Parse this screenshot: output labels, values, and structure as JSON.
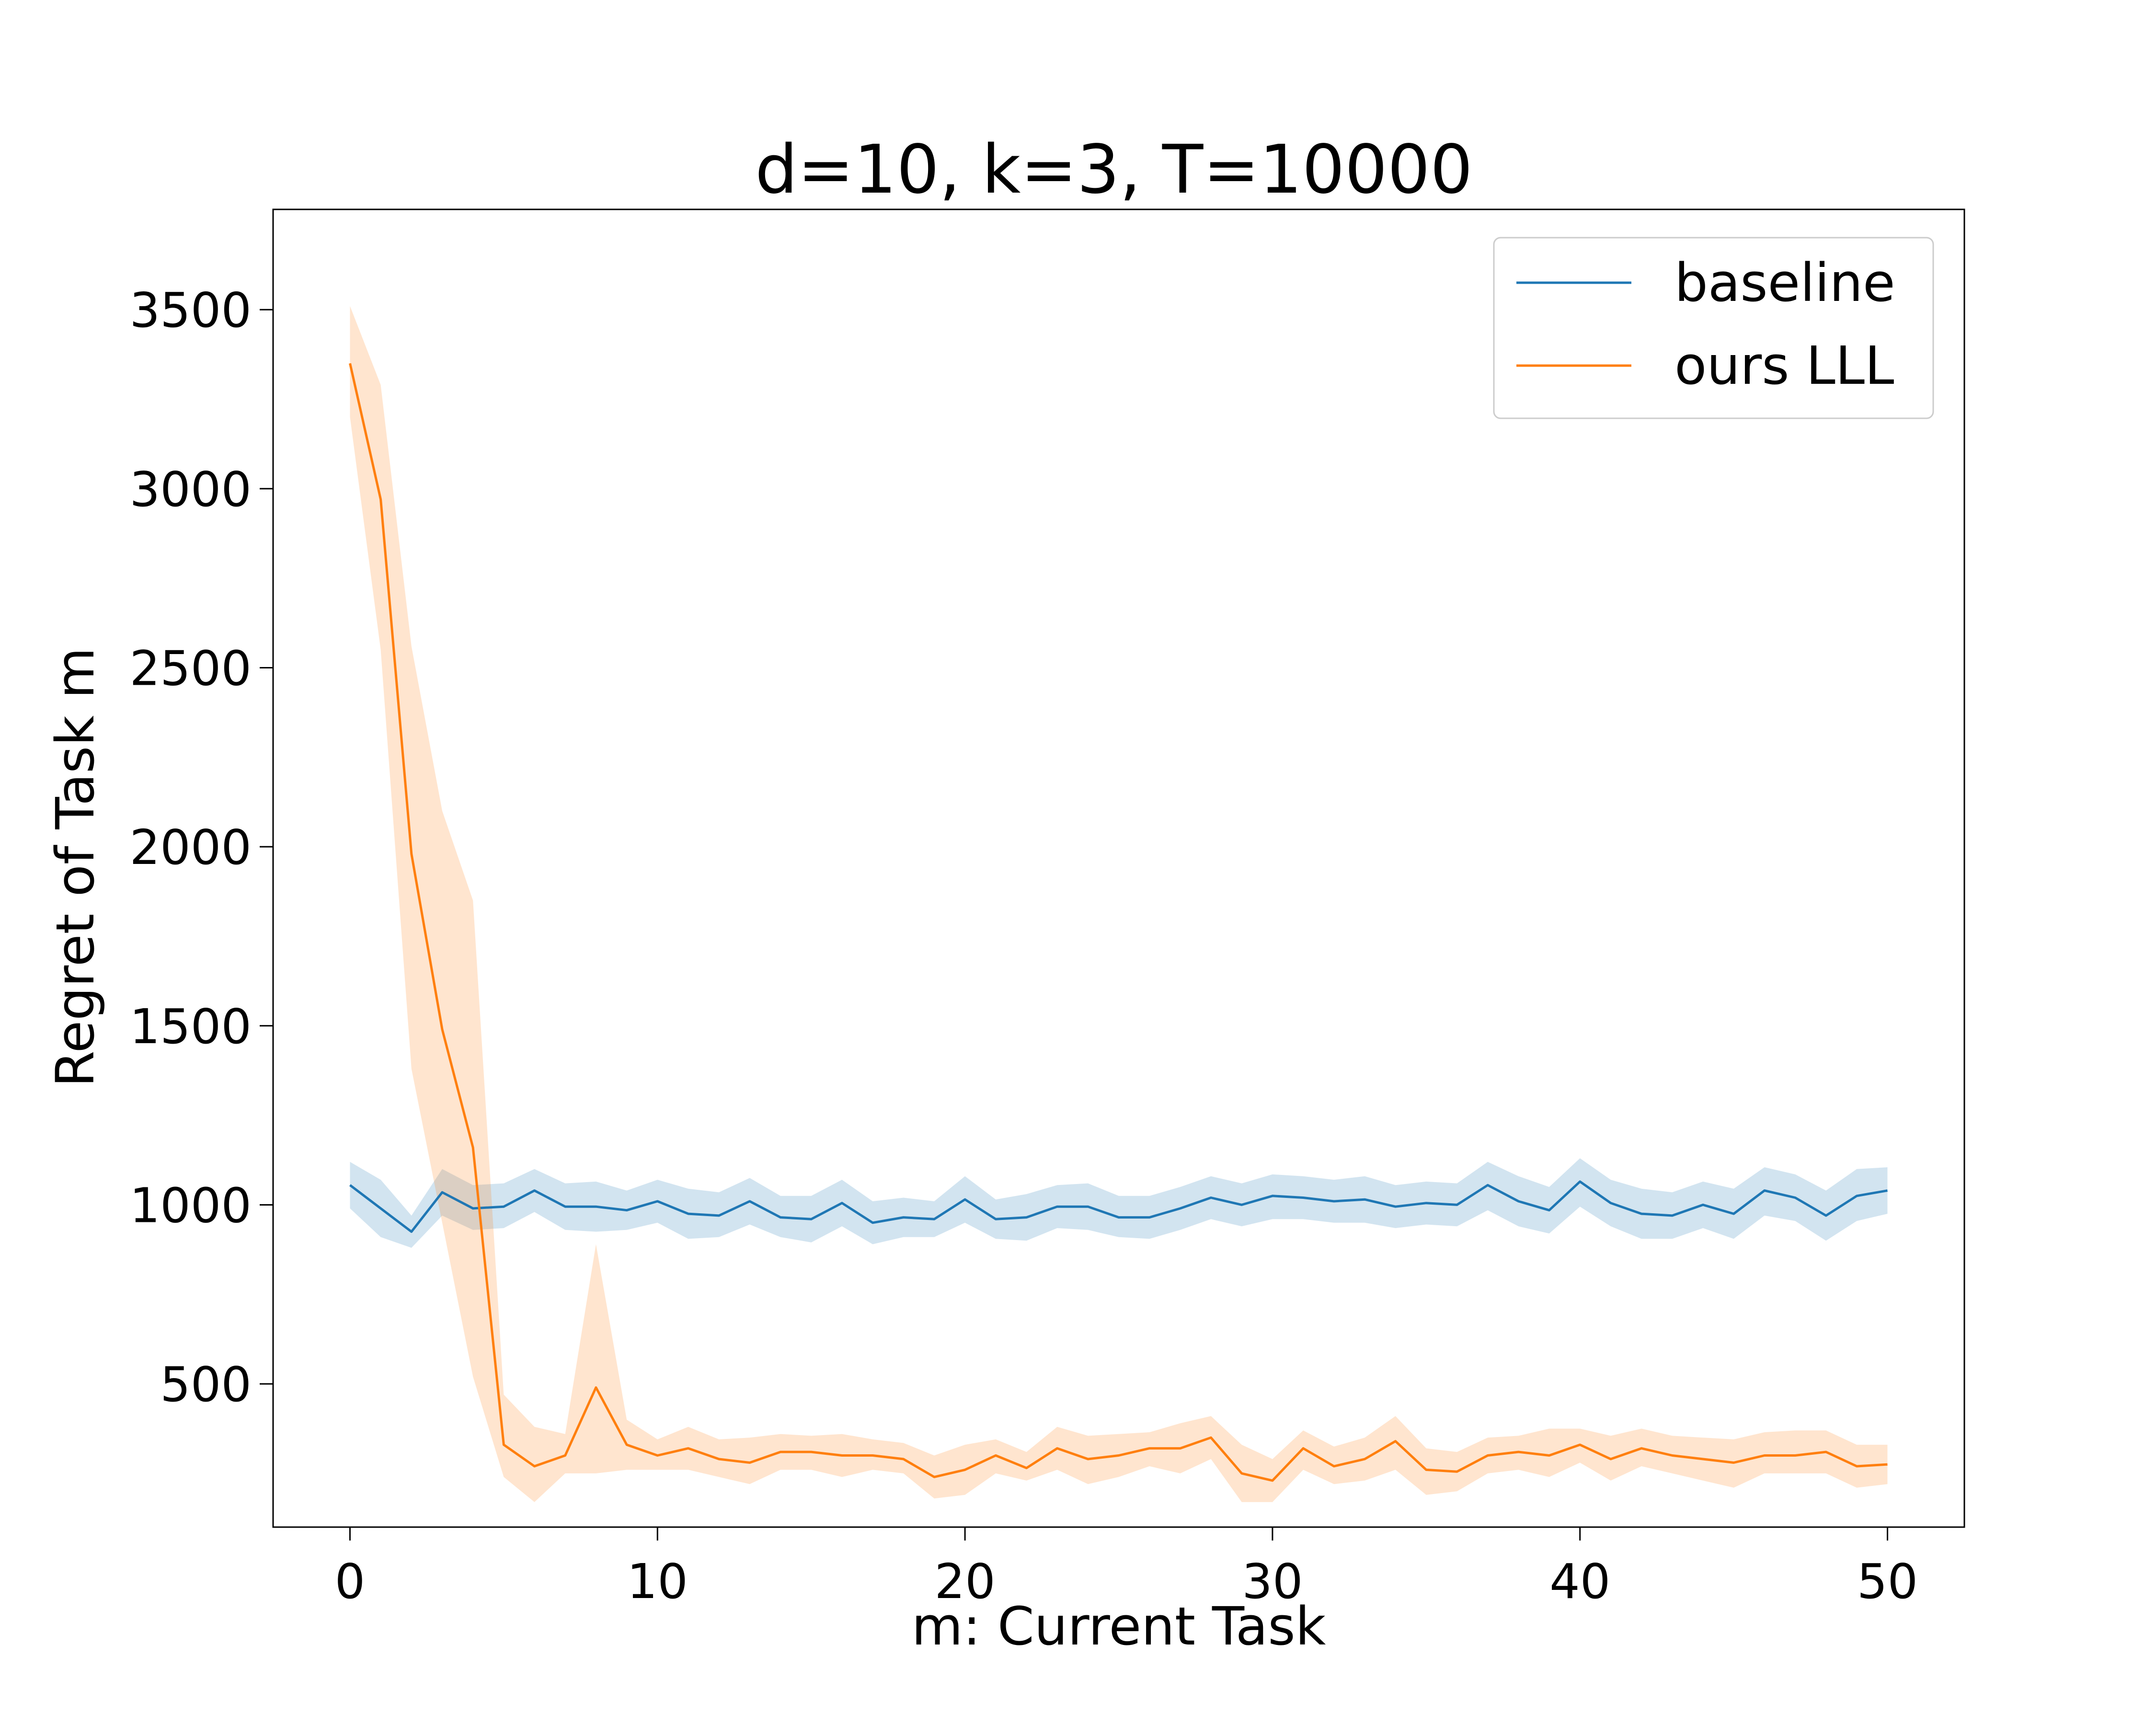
{
  "chart_data": {
    "type": "line",
    "title": "d=10, k=3, T=10000",
    "xlabel": "m: Current Task",
    "ylabel": "Regret of Task m",
    "xlim": [
      -2.5,
      52.5
    ],
    "ylim": [
      100,
      3780
    ],
    "xticks": [
      0,
      10,
      20,
      30,
      40,
      50
    ],
    "yticks": [
      500,
      1000,
      1500,
      2000,
      2500,
      3000,
      3500
    ],
    "grid": false,
    "legend_position": "top-right",
    "x": [
      0,
      1,
      2,
      3,
      4,
      5,
      6,
      7,
      8,
      9,
      10,
      11,
      12,
      13,
      14,
      15,
      16,
      17,
      18,
      19,
      20,
      21,
      22,
      23,
      24,
      25,
      26,
      27,
      28,
      29,
      30,
      31,
      32,
      33,
      34,
      35,
      36,
      37,
      38,
      39,
      40,
      41,
      42,
      43,
      44,
      45,
      46,
      47,
      48,
      49,
      50
    ],
    "series": [
      {
        "name": "baseline",
        "color": "#1f77b4",
        "values": [
          1055,
          990,
          925,
          1035,
          990,
          995,
          1040,
          995,
          995,
          985,
          1010,
          975,
          970,
          1010,
          965,
          960,
          1005,
          950,
          965,
          960,
          1015,
          960,
          965,
          995,
          995,
          965,
          965,
          990,
          1020,
          1000,
          1025,
          1020,
          1010,
          1015,
          995,
          1005,
          1000,
          1055,
          1010,
          985,
          1065,
          1005,
          975,
          970,
          1000,
          975,
          1040,
          1020,
          970,
          1025,
          1040
        ],
        "lower": [
          990,
          910,
          880,
          970,
          930,
          935,
          980,
          930,
          925,
          930,
          950,
          905,
          910,
          945,
          910,
          895,
          940,
          890,
          910,
          910,
          950,
          905,
          900,
          935,
          930,
          910,
          905,
          930,
          960,
          940,
          960,
          960,
          950,
          950,
          935,
          945,
          940,
          985,
          940,
          920,
          995,
          940,
          905,
          905,
          935,
          905,
          970,
          955,
          900,
          955,
          975
        ],
        "upper": [
          1120,
          1070,
          970,
          1100,
          1055,
          1060,
          1100,
          1060,
          1065,
          1040,
          1070,
          1045,
          1035,
          1075,
          1025,
          1025,
          1070,
          1010,
          1020,
          1010,
          1080,
          1015,
          1030,
          1055,
          1060,
          1025,
          1025,
          1050,
          1080,
          1060,
          1085,
          1080,
          1070,
          1080,
          1055,
          1065,
          1060,
          1120,
          1080,
          1050,
          1130,
          1070,
          1045,
          1035,
          1065,
          1045,
          1105,
          1085,
          1040,
          1100,
          1105
        ]
      },
      {
        "name": "ours LLL",
        "color": "#ff7f0e",
        "values": [
          3350,
          2970,
          1980,
          1490,
          1160,
          330,
          270,
          300,
          490,
          330,
          300,
          320,
          290,
          280,
          310,
          310,
          300,
          300,
          290,
          240,
          260,
          300,
          265,
          320,
          290,
          300,
          320,
          320,
          350,
          250,
          230,
          320,
          270,
          290,
          340,
          260,
          255,
          300,
          310,
          300,
          330,
          290,
          320,
          300,
          290,
          280,
          300,
          300,
          310,
          270,
          275
        ],
        "lower": [
          3200,
          2550,
          1380,
          950,
          520,
          240,
          170,
          250,
          250,
          260,
          260,
          260,
          240,
          220,
          260,
          260,
          240,
          260,
          250,
          180,
          190,
          250,
          230,
          260,
          220,
          240,
          270,
          250,
          290,
          170,
          170,
          260,
          220,
          230,
          260,
          190,
          200,
          250,
          260,
          240,
          280,
          230,
          270,
          250,
          230,
          210,
          250,
          250,
          250,
          210,
          220
        ],
        "upper": [
          3510,
          3290,
          2560,
          2100,
          1850,
          470,
          380,
          360,
          890,
          400,
          345,
          380,
          345,
          350,
          360,
          355,
          360,
          345,
          335,
          300,
          330,
          345,
          310,
          380,
          355,
          360,
          365,
          390,
          410,
          330,
          290,
          370,
          325,
          350,
          410,
          320,
          310,
          350,
          355,
          375,
          375,
          355,
          375,
          355,
          350,
          345,
          365,
          370,
          370,
          330,
          330
        ]
      }
    ]
  }
}
